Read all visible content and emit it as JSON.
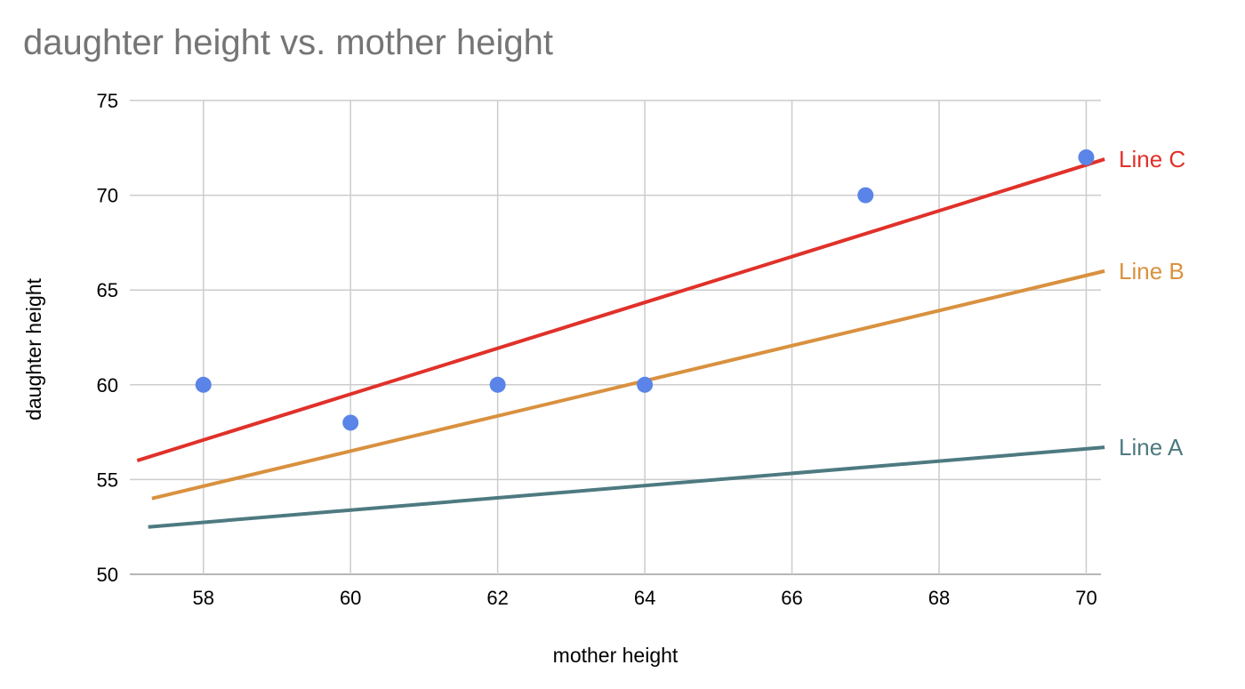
{
  "chart_data": {
    "type": "scatter",
    "title": "daughter height vs. mother height",
    "xlabel": "mother height",
    "ylabel": "daughter height",
    "xlim": [
      57,
      70.2
    ],
    "ylim": [
      50,
      75
    ],
    "xticks": [
      "58",
      "60",
      "62",
      "64",
      "66",
      "68",
      "70"
    ],
    "yticks": [
      "50",
      "55",
      "60",
      "65",
      "70",
      "75"
    ],
    "grid": true,
    "points": {
      "color": "#5b84e8",
      "x": [
        58,
        60,
        62,
        64,
        67,
        70
      ],
      "y": [
        60,
        58,
        60,
        60,
        70,
        72
      ]
    },
    "lines": [
      {
        "name": "Line A",
        "color": "#4d7a80",
        "x": [
          57.25,
          70.25
        ],
        "y": [
          52.5,
          56.7
        ]
      },
      {
        "name": "Line B",
        "color": "#d9913f",
        "x": [
          57.3,
          70.25
        ],
        "y": [
          54.0,
          66.0
        ]
      },
      {
        "name": "Line C",
        "color": "#e0312a",
        "x": [
          57.1,
          70.25
        ],
        "y": [
          56.0,
          71.9
        ]
      }
    ]
  }
}
